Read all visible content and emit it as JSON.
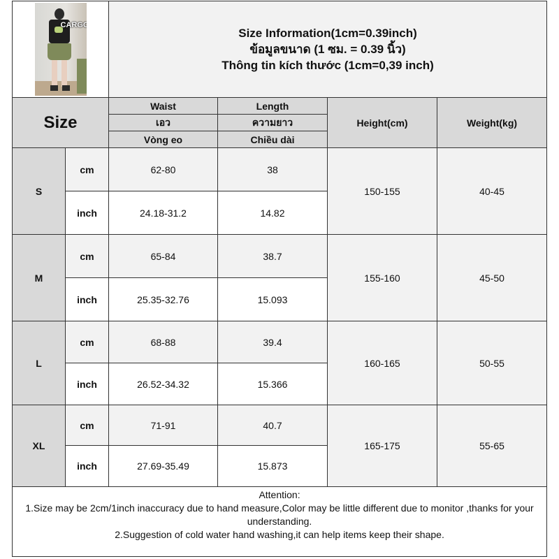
{
  "header": {
    "title_lines": [
      "Size Information(1cm=0.39inch)",
      "ข้อมูลขนาด (1 ซม. = 0.39 นิ้ว)",
      "Thông tin kích thước (1cm=0,39 inch)"
    ],
    "photo_label": "CARGO"
  },
  "columns": {
    "size": "Size",
    "waist": [
      "Waist",
      "เอว",
      "Vòng eo"
    ],
    "length": [
      "Length",
      "ความยาว",
      "Chiều dài"
    ],
    "height": "Height(cm)",
    "weight": "Weight(kg)"
  },
  "rows": [
    {
      "size": "S",
      "cm_label": "cm",
      "inch_label": "inch",
      "waist_cm": "62-80",
      "length_cm": "38",
      "waist_inch": "24.18-31.2",
      "length_inch": "14.82",
      "height": "150-155",
      "weight": "40-45"
    },
    {
      "size": "M",
      "cm_label": "cm",
      "inch_label": "inch",
      "waist_cm": "65-84",
      "length_cm": "38.7",
      "waist_inch": "25.35-32.76",
      "length_inch": "15.093",
      "height": "155-160",
      "weight": "45-50"
    },
    {
      "size": "L",
      "cm_label": "cm",
      "inch_label": "inch",
      "waist_cm": "68-88",
      "length_cm": "39.4",
      "waist_inch": "26.52-34.32",
      "length_inch": "15.366",
      "height": "160-165",
      "weight": "50-55"
    },
    {
      "size": "XL",
      "cm_label": "cm",
      "inch_label": "inch",
      "waist_cm": "71-91",
      "length_cm": "40.7",
      "waist_inch": "27.69-35.49",
      "length_inch": "15.873",
      "height": "165-175",
      "weight": "55-65"
    }
  ],
  "attention": {
    "heading": "Attention:",
    "line1": "1.Size may be 2cm/1inch inaccuracy due to hand measure,Color may be little different due to monitor ,thanks for your understanding.",
    "line2": "2.Suggestion of cold water hand washing,it can help items keep their shape."
  },
  "colors": {
    "header_gray": "#d9d9d9",
    "light_gray": "#f2f2f2",
    "border": "#333333"
  }
}
